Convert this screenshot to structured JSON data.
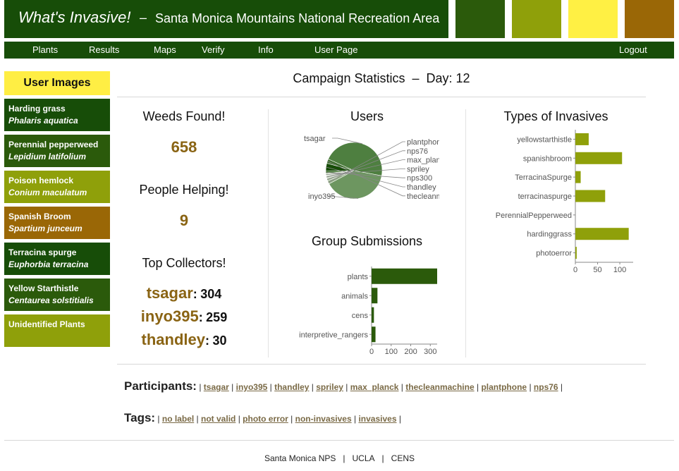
{
  "header": {
    "title": "What's Invasive!",
    "dash": "–",
    "subtitle": "Santa Monica Mountains National Recreation Area",
    "swatches": [
      "#2b5a0b",
      "#8fa00a",
      "#fff044",
      "#9a6706"
    ]
  },
  "nav": {
    "items": [
      "Plants",
      "Results",
      "Maps",
      "Verify",
      "Info",
      "User Page"
    ],
    "logout": "Logout"
  },
  "sidebar": {
    "title": "User Images",
    "items": [
      {
        "common": "Harding grass",
        "latin": "Phalaris aquatica",
        "color": "#174d08"
      },
      {
        "common": "Perennial pepperweed",
        "latin": "Lepidium latifolium",
        "color": "#2b5a0b"
      },
      {
        "common": "Poison hemlock",
        "latin": "Conium maculatum",
        "color": "#8fa00a"
      },
      {
        "common": "Spanish Broom",
        "latin": "Spartium junceum",
        "color": "#9a6706"
      },
      {
        "common": "Terracina spurge",
        "latin": "Euphorbia terracina",
        "color": "#174d08"
      },
      {
        "common": "Yellow Starthistle",
        "latin": "Centaurea solstitialis",
        "color": "#2b5a0b"
      },
      {
        "common": "Unidentified Plants",
        "latin": "",
        "color": "#8fa00a"
      }
    ]
  },
  "campaign": {
    "title": "Campaign Statistics",
    "dash": "–",
    "day_label": "Day: 12"
  },
  "stats": {
    "weeds_title": "Weeds Found!",
    "weeds_value": "658",
    "people_title": "People Helping!",
    "people_value": "9",
    "collectors_title": "Top Collectors!",
    "collectors": [
      {
        "name": "tsagar",
        "sep": ":",
        "count": "304"
      },
      {
        "name": "inyo395",
        "sep": ":",
        "count": "259"
      },
      {
        "name": "thandley",
        "sep": ":",
        "count": "30"
      }
    ]
  },
  "users_title": "Users",
  "groups_title": "Group Submissions",
  "types_title": "Types of Invasives",
  "chart_data": [
    {
      "type": "pie",
      "slices": [
        {
          "label": "tsagar",
          "value": 304,
          "color": "#4e7f40"
        },
        {
          "label": "inyo395",
          "value": 259,
          "color": "#6d9660"
        },
        {
          "label": "plantphone",
          "value": 12,
          "color": "#8ea981"
        },
        {
          "label": "nps76",
          "value": 10,
          "color": "#a9bea0"
        },
        {
          "label": "max_planck",
          "value": 10,
          "color": "#c7d6c1"
        },
        {
          "label": "spriley",
          "value": 9,
          "color": "#d8e2d3"
        },
        {
          "label": "nps300",
          "value": 8,
          "color": "#2e6a1a"
        },
        {
          "label": "thandley",
          "value": 30,
          "color": "#174d08"
        },
        {
          "label": "thecleanmachine",
          "value": 16,
          "color": "#3e6e2e"
        }
      ]
    },
    {
      "type": "bar",
      "orientation": "horizontal",
      "categories": [
        "plants",
        "animals",
        "cens",
        "interpretive_rangers"
      ],
      "values": [
        335,
        30,
        12,
        20
      ],
      "xlim": [
        0,
        335
      ],
      "xticks": [
        0,
        100,
        200,
        300
      ],
      "color": "#2b5a0b"
    },
    {
      "type": "bar",
      "orientation": "horizontal",
      "categories": [
        "yellowstarthistle",
        "spanishbroom",
        "TerracinaSpurge",
        "terracinaspurge",
        "PerennialPepperweed",
        "hardinggrass",
        "photoerror"
      ],
      "values": [
        30,
        105,
        12,
        67,
        0,
        120,
        3
      ],
      "xlim": [
        0,
        130
      ],
      "xticks": [
        0,
        50,
        100
      ],
      "color": "#8fa00a"
    }
  ],
  "participants": {
    "label": "Participants:",
    "links": [
      "tsagar",
      "inyo395",
      "thandley",
      "spriley",
      "max_planck",
      "thecleanmachine",
      "plantphone",
      "nps76"
    ]
  },
  "tags": {
    "label": "Tags:",
    "links": [
      "no label",
      "not valid",
      "photo error",
      "non-invasives",
      "invasives"
    ]
  },
  "footer": {
    "links": [
      "Santa Monica NPS",
      "UCLA",
      "CENS"
    ],
    "sep": "|"
  }
}
